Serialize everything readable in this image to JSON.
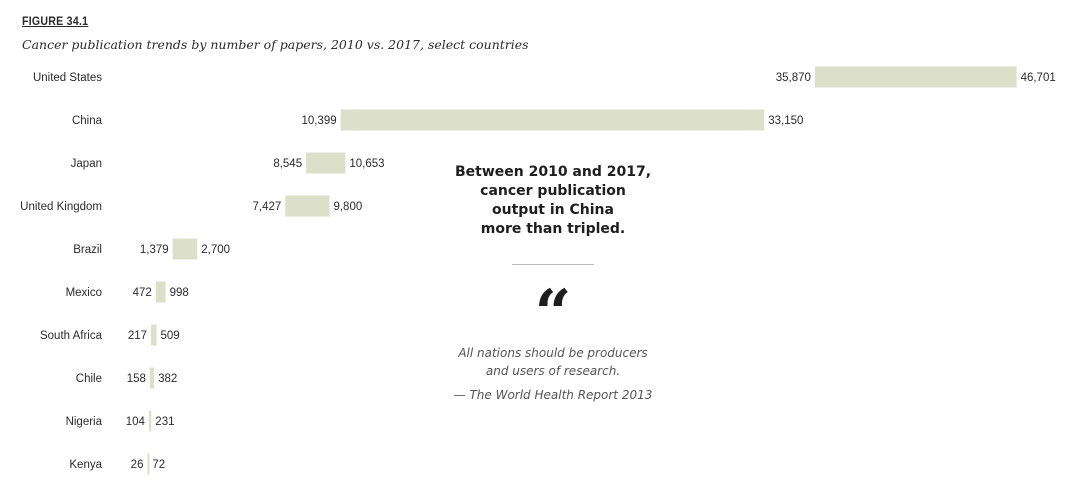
{
  "figure": {
    "label": "FIGURE 34.1",
    "title": "Cancer publication trends by number of papers, 2010 vs. 2017, select countries"
  },
  "colors": {
    "bar": "#dcdfca",
    "text": "#2b2b2b"
  },
  "chart_data": {
    "type": "bar",
    "orientation": "horizontal",
    "title": "Cancer publication trends by number of papers, 2010 vs. 2017, select countries",
    "categories": [
      "United States",
      "China",
      "Japan",
      "United Kingdom",
      "Brazil",
      "Mexico",
      "South Africa",
      "Chile",
      "Nigeria",
      "Kenya"
    ],
    "series": [
      {
        "name": "2010",
        "values": [
          35870,
          10399,
          8545,
          7427,
          1379,
          472,
          217,
          158,
          104,
          26
        ]
      },
      {
        "name": "2017",
        "values": [
          46701,
          33150,
          10653,
          9800,
          2700,
          998,
          509,
          382,
          231,
          72
        ]
      }
    ],
    "value_labels": {
      "2010": [
        "35,870",
        "10,399",
        "8,545",
        "7,427",
        "1,379",
        "472",
        "217",
        "158",
        "104",
        "26"
      ],
      "2017": [
        "46,701",
        "33,150",
        "10,653",
        "9,800",
        "2,700",
        "998",
        "509",
        "382",
        "231",
        "72"
      ]
    },
    "xlabel": "",
    "ylabel": ""
  },
  "callout": {
    "lines": [
      "Between 2010 and 2017,",
      "cancer publication",
      "output in China",
      "more than tripled."
    ]
  },
  "quote": {
    "mark": "“",
    "lines": [
      "All nations should be producers",
      "and users of research."
    ],
    "source": "— The World Health Report 2013"
  }
}
